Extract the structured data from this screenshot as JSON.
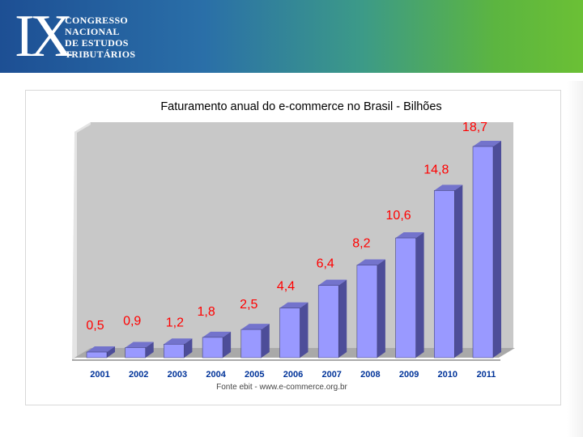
{
  "header": {
    "logo_mark": "IX",
    "logo_lines": [
      "CONGRESSO",
      "NACIONAL",
      "DE ESTUDOS",
      "TRIBUTÁRIOS"
    ]
  },
  "chart_data": {
    "type": "bar",
    "title": "Faturamento anual do e-commerce no Brasil - Bilhões",
    "categories": [
      "2001",
      "2002",
      "2003",
      "2004",
      "2005",
      "2006",
      "2007",
      "2008",
      "2009",
      "2010",
      "2011"
    ],
    "values": [
      0.5,
      0.9,
      1.2,
      1.8,
      2.5,
      4.4,
      6.4,
      8.2,
      10.6,
      14.8,
      18.7
    ],
    "value_labels": [
      "0,5",
      "0,9",
      "1,2",
      "1,8",
      "2,5",
      "4,4",
      "6,4",
      "8,2",
      "10,6",
      "14,8",
      "18,7"
    ],
    "xlabel": "",
    "ylabel": "",
    "ylim": [
      0,
      18.7
    ],
    "grid": false,
    "legend": "none",
    "source": "Fonte ebit - www.e-commerce.org.br",
    "colors": {
      "bar_front": "#9999ff",
      "bar_side": "#4d4d99",
      "bar_top": "#7373cc",
      "wall": "#c8c8c8",
      "label": "#ff0000",
      "axis_text": "#003399",
      "title": "#000000"
    }
  }
}
